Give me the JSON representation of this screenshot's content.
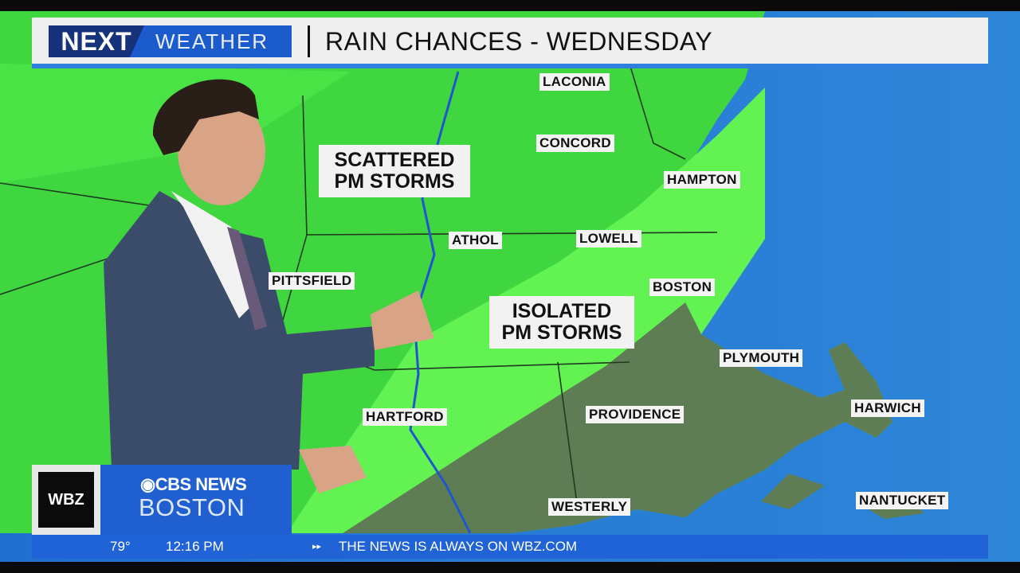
{
  "header": {
    "brand_next": "NEXT",
    "brand_weather": "WEATHER",
    "title": "RAIN CHANCES - WEDNESDAY"
  },
  "callouts": {
    "scattered": "SCATTERED PM STORMS",
    "isolated": "ISOLATED PM STORMS"
  },
  "cities": [
    "LACONIA",
    "CONCORD",
    "HAMPTON",
    "ATHOL",
    "LOWELL",
    "PITTSFIELD",
    "BOSTON",
    "PLYMOUTH",
    "HARWICH",
    "HARTFORD",
    "PROVIDENCE",
    "WESTERLY",
    "NANTUCKET"
  ],
  "bug": {
    "station": "WBZ",
    "network": "CBS NEWS",
    "city": "BOSTON"
  },
  "ticker": {
    "temperature": "79°",
    "time": "12:16 PM",
    "marker": "▸▸",
    "message": "THE NEWS IS ALWAYS ON WBZ.COM"
  },
  "colors": {
    "scattered_zone": "#2fd23a",
    "isolated_zone": "#5ff04e",
    "low_chance_zone": "#5e7f52",
    "ocean": "#2a7bd4",
    "accent": "#1f5fd0"
  }
}
